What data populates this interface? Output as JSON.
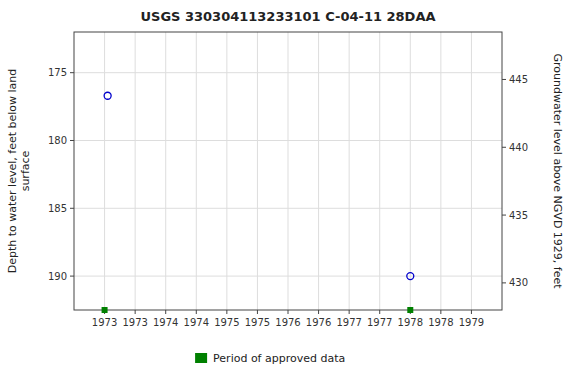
{
  "chart_data": {
    "type": "scatter",
    "title": "USGS 330304113233101 C-04-11 28DAA",
    "y_label": "Depth to water level, feet below land\n surface",
    "y2_label": "Groundwater level above NGVD 1929, feet",
    "xlim": [
      1972.5,
      1979.5
    ],
    "xticks": [
      {
        "value": 1973.0,
        "label": "1973"
      },
      {
        "value": 1973.5,
        "label": "1973"
      },
      {
        "value": 1974.0,
        "label": "1974"
      },
      {
        "value": 1974.5,
        "label": "1974"
      },
      {
        "value": 1975.0,
        "label": "1975"
      },
      {
        "value": 1975.5,
        "label": "1975"
      },
      {
        "value": 1976.0,
        "label": "1976"
      },
      {
        "value": 1976.5,
        "label": "1976"
      },
      {
        "value": 1977.0,
        "label": "1977"
      },
      {
        "value": 1977.5,
        "label": "1977"
      },
      {
        "value": 1978.0,
        "label": "1978"
      },
      {
        "value": 1978.5,
        "label": "1978"
      },
      {
        "value": 1979.0,
        "label": "1979"
      }
    ],
    "ylim": [
      192.5,
      172.0
    ],
    "yticks": [
      175,
      180,
      185,
      190
    ],
    "y2lim": [
      428.0,
      448.5
    ],
    "y2ticks": [
      430,
      435,
      440,
      445
    ],
    "grid": true,
    "legend": "bottom",
    "series": [
      {
        "x": [
          1973.05,
          1978.0
        ],
        "values": [
          176.7,
          190.0
        ],
        "color": "#0000cc",
        "marker": "circle"
      },
      {
        "name": "Period of approved data",
        "x": [
          1973.0,
          1978.0
        ],
        "values": [
          192.5,
          192.5
        ],
        "color": "#008000",
        "marker": "square"
      }
    ]
  }
}
